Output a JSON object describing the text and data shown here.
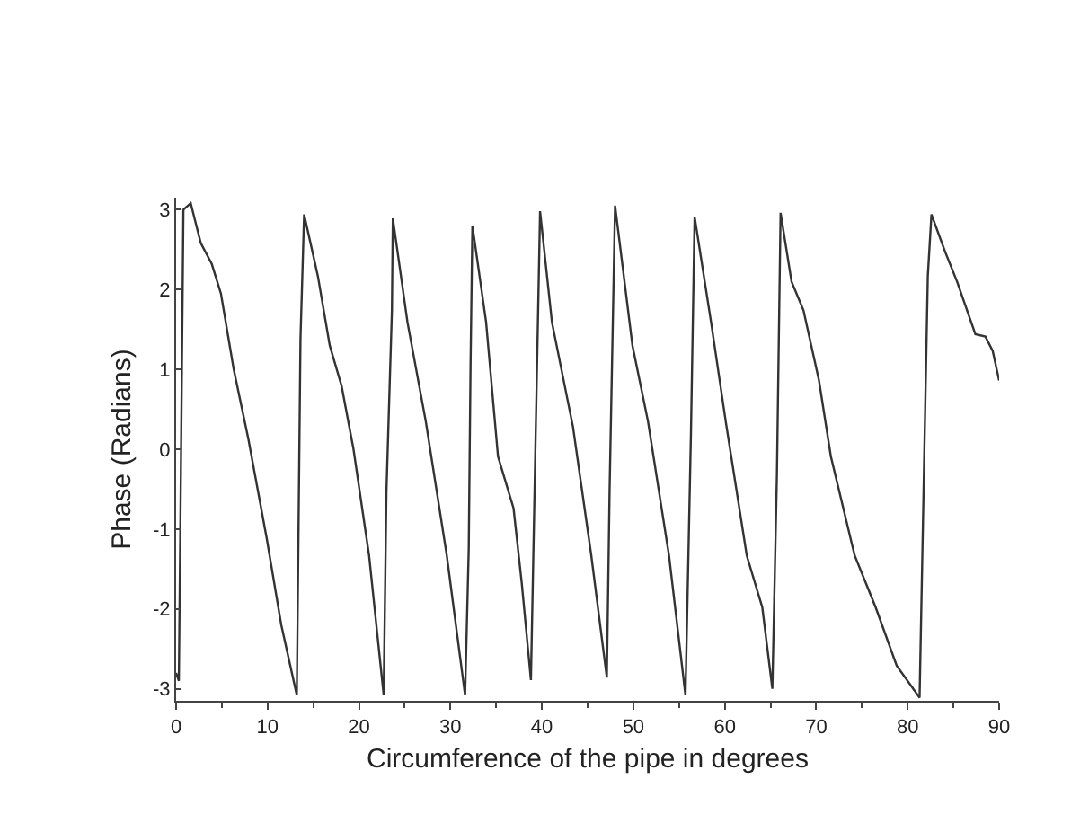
{
  "chart_data": {
    "type": "line",
    "xlabel": "Circumference of the pipe in degrees",
    "ylabel": "Phase (Radians)",
    "x": [
      0,
      0.3,
      0.8,
      1.6,
      2.7,
      3.9,
      4.9,
      6.3,
      7.9,
      9.9,
      11.5,
      13.2,
      13.6,
      14.0,
      15.5,
      16.8,
      18.1,
      19.4,
      21.1,
      22.7,
      23.0,
      23.6,
      23.7,
      25.3,
      27.3,
      29.6,
      31.6,
      32.0,
      32.2,
      32.4,
      33.9,
      35.2,
      36.9,
      37.8,
      38.8,
      39.3,
      39.8,
      41.1,
      43.4,
      45.4,
      47.1,
      47.4,
      48.0,
      49.9,
      51.6,
      53.9,
      55.7,
      56.3,
      56.7,
      58.5,
      60.1,
      62.4,
      64.1,
      65.2,
      65.7,
      66.1,
      67.3,
      68.6,
      70.3,
      71.6,
      74.2,
      76.5,
      78.8,
      81.3,
      81.8,
      82.2,
      82.6,
      84.1,
      85.4,
      87.4,
      88.5,
      89.3,
      90
    ],
    "series": [
      {
        "color": "#333333",
        "values": [
          -2.8,
          -2.9,
          3.0,
          3.08,
          2.58,
          2.32,
          1.95,
          1.0,
          0.13,
          -1.11,
          -2.2,
          -3.08,
          1.38,
          2.94,
          2.17,
          1.3,
          0.79,
          0.0,
          -1.33,
          -3.08,
          -0.53,
          1.74,
          2.89,
          1.59,
          0.35,
          -1.33,
          -3.08,
          -1.25,
          1.08,
          2.8,
          1.59,
          -0.09,
          -0.74,
          -1.68,
          -2.89,
          0.07,
          2.98,
          1.59,
          0.28,
          -1.33,
          -2.86,
          -0.53,
          3.05,
          1.3,
          0.35,
          -1.33,
          -3.08,
          0.2,
          2.91,
          1.59,
          0.35,
          -1.33,
          -1.98,
          -3.0,
          -0.31,
          2.96,
          2.1,
          1.74,
          0.86,
          -0.09,
          -1.33,
          -1.98,
          -2.71,
          -3.11,
          -0.16,
          2.17,
          2.94,
          2.47,
          2.1,
          1.44,
          1.41,
          1.23,
          0.86
        ]
      }
    ],
    "xlim": [
      0,
      90
    ],
    "xticks": [
      0,
      10,
      20,
      30,
      40,
      50,
      60,
      70,
      80,
      90
    ],
    "ylim": [
      -3.15,
      3.15
    ],
    "yticks": [
      -3,
      -2,
      -1,
      0,
      1,
      2,
      3
    ],
    "marker": "none",
    "line_style": "solid"
  }
}
